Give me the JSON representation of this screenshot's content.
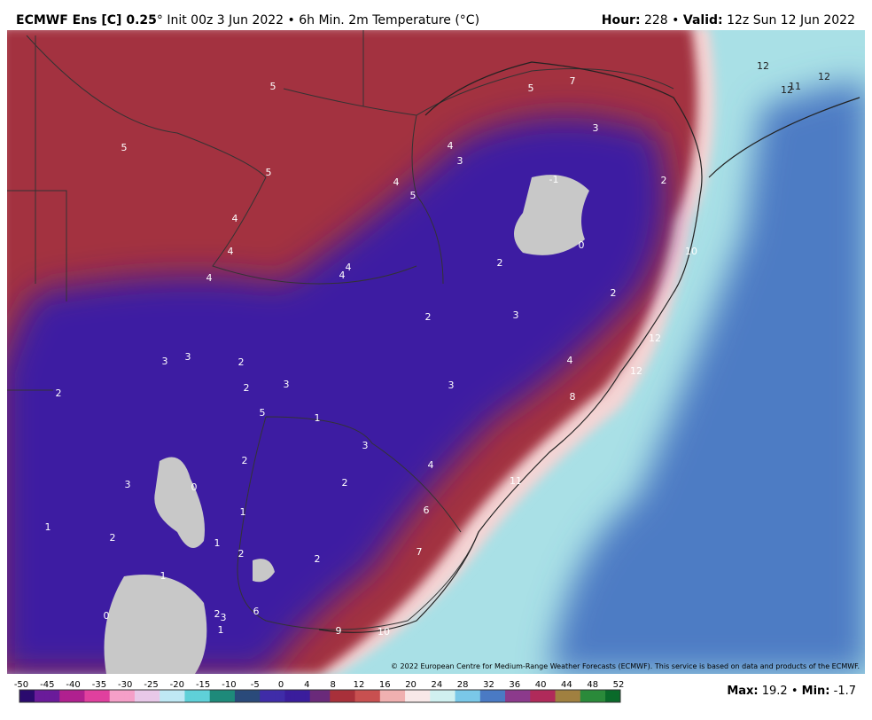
{
  "header": {
    "title_bold": "ECMWF Ens [C] 0.25",
    "title_rest": "° Init 00z 3 Jun 2022 • 6h Min. 2m Temperature (°C)",
    "hour_key": "Hour:",
    "hour_value": " 228 • ",
    "valid_key": "Valid:",
    "valid_value": " 12z Sun 12 Jun 2022"
  },
  "map": {
    "labels": [
      "5",
      "5",
      "5",
      "4",
      "4",
      "4",
      "4",
      "4",
      "4",
      "5",
      "4",
      "3",
      "5",
      "7",
      "3",
      "-1",
      "2",
      "0",
      "10",
      "2",
      "2",
      "2",
      "3",
      "12",
      "4",
      "12",
      "3",
      "8",
      "3",
      "3",
      "2",
      "2",
      "3",
      "2",
      "5",
      "1",
      "3",
      "4",
      "2",
      "2",
      "0",
      "3",
      "11",
      "6",
      "1",
      "1",
      "2",
      "1",
      "2",
      "7",
      "2",
      "1",
      "6",
      "2",
      "3",
      "0",
      "1",
      "9",
      "10",
      "12",
      "12",
      "11",
      "12"
    ],
    "credit": "© 2022 European Centre for Medium-Range Weather Forecasts (ECMWF). This service is based on data and products of the ECMWF."
  },
  "colorbar": {
    "ticks": [
      -50,
      -45,
      -40,
      -35,
      -30,
      -25,
      -20,
      -15,
      -10,
      -5,
      0,
      4,
      8,
      12,
      16,
      20,
      24,
      28,
      32,
      36,
      40,
      44,
      48,
      52
    ]
  },
  "footer": {
    "max_key": "Max:",
    "max_value": " 19.2 • ",
    "min_key": "Min:",
    "min_value": " -1.7"
  }
}
